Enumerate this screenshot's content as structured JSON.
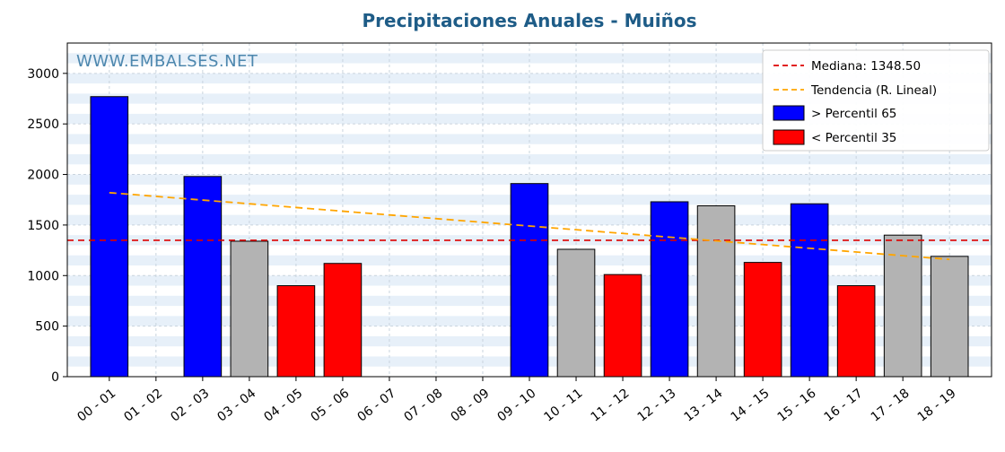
{
  "chart_data": {
    "type": "bar",
    "title": "Precipitaciones Anuales - Muiños",
    "watermark": "WWW.EMBALSES.NET",
    "categories": [
      "00 - 01",
      "01 - 02",
      "02 - 03",
      "03 - 04",
      "04 - 05",
      "05 - 06",
      "06 - 07",
      "07 - 08",
      "08 - 09",
      "09 - 10",
      "10 - 11",
      "11 - 12",
      "12 - 13",
      "13 - 14",
      "14 - 15",
      "15 - 16",
      "16 - 17",
      "17 - 18",
      "18 - 19"
    ],
    "values": [
      2770,
      0,
      1980,
      1340,
      900,
      1120,
      0,
      0,
      0,
      1910,
      1260,
      1010,
      1730,
      1690,
      1130,
      1710,
      900,
      1400,
      1190
    ],
    "bar_colors": [
      "blue",
      null,
      "blue",
      "gray",
      "red",
      "red",
      null,
      null,
      null,
      "blue",
      "gray",
      "red",
      "blue",
      "gray",
      "red",
      "blue",
      "red",
      "gray",
      "gray"
    ],
    "median": 1348.5,
    "trend": {
      "start": 1820,
      "end": 1160
    },
    "yticks": [
      0,
      500,
      1000,
      1500,
      2000,
      2500,
      3000
    ],
    "ylim": [
      0,
      3300
    ],
    "grid": true,
    "legend_position": "top-right",
    "legend": [
      {
        "label": "Mediana: 1348.50",
        "type": "line",
        "dash": true
      },
      {
        "label": "Tendencia (R. Lineal)",
        "type": "line",
        "dash": true
      },
      {
        "label": "> Percentil 65",
        "type": "patch"
      },
      {
        "label": "< Percentil 35",
        "type": "patch"
      }
    ],
    "colors": {
      "blue": "#0000ff",
      "red": "#ff0000",
      "gray": "#b3b3b3",
      "median": "#dd0000",
      "trend": "#ffa500",
      "title": "#1e5c87",
      "watermark": "#4d87ae",
      "stripe": "#e7f0f9",
      "gridline": "#c9d4de"
    }
  }
}
